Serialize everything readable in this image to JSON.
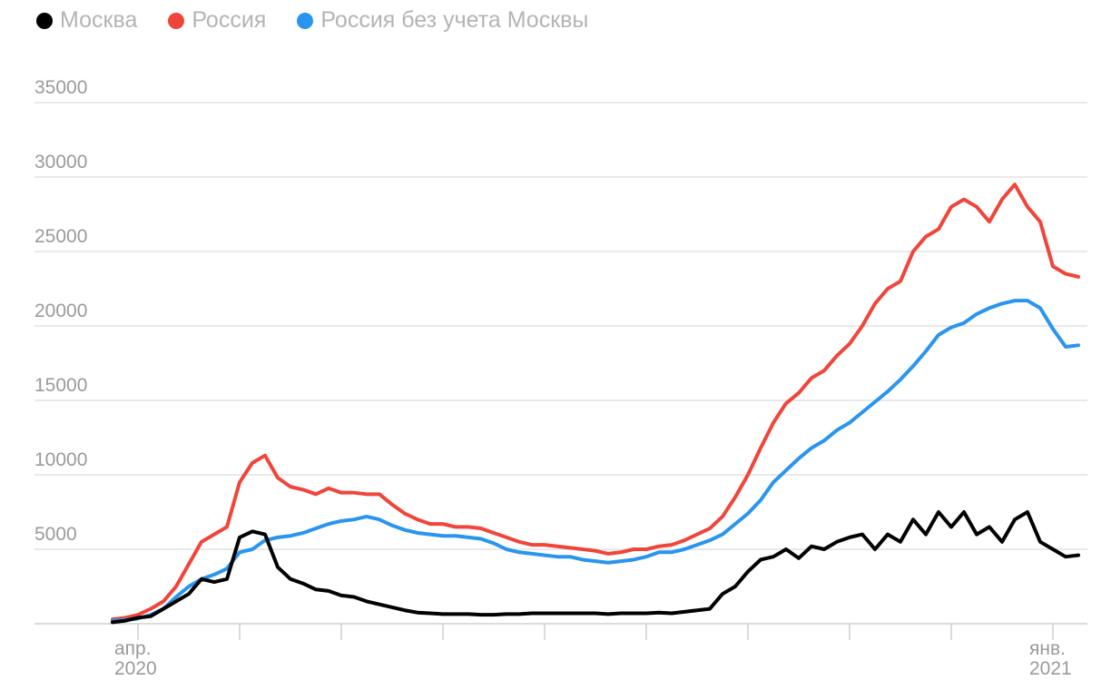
{
  "chart_data": {
    "type": "line",
    "categories": [
      null,
      null,
      "апр.\n2020",
      null,
      null,
      null,
      null,
      null,
      null,
      null,
      null,
      null,
      null,
      null,
      null,
      null,
      null,
      null,
      null,
      null,
      null,
      null,
      null,
      null,
      null,
      null,
      null,
      null,
      null,
      null,
      null,
      null,
      null,
      null,
      null,
      null,
      null,
      null,
      null,
      null,
      null,
      null,
      null,
      null,
      null,
      null,
      null,
      null,
      null,
      null,
      null,
      null,
      null,
      null,
      null,
      null,
      null,
      null,
      null,
      null,
      null,
      null,
      null,
      null,
      null,
      null,
      null,
      null,
      null,
      null,
      null,
      null,
      null,
      null,
      "янв.\n2021",
      null,
      null
    ],
    "xticks": [
      2,
      10,
      18,
      26,
      34,
      42,
      50,
      58,
      66,
      74
    ],
    "series": [
      {
        "name": "Москва",
        "color": "#000000",
        "values": [
          100,
          200,
          400,
          500,
          1000,
          1500,
          2000,
          3000,
          2800,
          3000,
          5800,
          6200,
          6000,
          3800,
          3000,
          2700,
          2300,
          2200,
          1900,
          1800,
          1500,
          1300,
          1100,
          900,
          750,
          700,
          650,
          650,
          650,
          600,
          600,
          650,
          650,
          700,
          700,
          700,
          700,
          700,
          700,
          650,
          700,
          700,
          700,
          750,
          700,
          800,
          900,
          1000,
          2000,
          2500,
          3500,
          4300,
          4500,
          5000,
          4400,
          5200,
          5000,
          5500,
          5800,
          6000,
          5000,
          6000,
          5500,
          7000,
          6000,
          7500,
          6500,
          7500,
          6000,
          6500,
          5500,
          7000,
          7500,
          5500,
          5000,
          4500,
          4600
        ]
      },
      {
        "name": "Россия",
        "color": "#f0453a",
        "values": [
          300,
          400,
          600,
          1000,
          1500,
          2500,
          4000,
          5500,
          6000,
          6500,
          9500,
          10800,
          11300,
          9800,
          9200,
          9000,
          8700,
          9100,
          8800,
          8800,
          8700,
          8700,
          8000,
          7400,
          7000,
          6700,
          6700,
          6500,
          6500,
          6400,
          6100,
          5800,
          5500,
          5300,
          5300,
          5200,
          5100,
          5000,
          4900,
          4700,
          4800,
          5000,
          5000,
          5200,
          5300,
          5600,
          6000,
          6400,
          7200,
          8500,
          10000,
          11800,
          13500,
          14800,
          15500,
          16500,
          17000,
          18000,
          18800,
          20000,
          21500,
          22500,
          23000,
          25000,
          26000,
          26500,
          28000,
          28500,
          28000,
          27000,
          28500,
          29500,
          28000,
          27000,
          24000,
          23500,
          23300
        ]
      },
      {
        "name": "Россия без учета Москвы",
        "color": "#2a95ee",
        "values": [
          200,
          250,
          350,
          600,
          1000,
          1800,
          2500,
          3000,
          3300,
          3700,
          4800,
          5000,
          5600,
          5800,
          5900,
          6100,
          6400,
          6700,
          6900,
          7000,
          7200,
          7000,
          6600,
          6300,
          6100,
          6000,
          5900,
          5900,
          5800,
          5700,
          5400,
          5000,
          4800,
          4700,
          4600,
          4500,
          4500,
          4300,
          4200,
          4100,
          4200,
          4300,
          4500,
          4800,
          4800,
          5000,
          5300,
          5600,
          6000,
          6700,
          7400,
          8300,
          9500,
          10300,
          11100,
          11800,
          12300,
          13000,
          13500,
          14200,
          14900,
          15600,
          16400,
          17300,
          18300,
          19400,
          19900,
          20200,
          20800,
          21200,
          21500,
          21700,
          21700,
          21200,
          19800,
          18600,
          18700
        ]
      }
    ],
    "ylim": [
      0,
      35000
    ],
    "yticks": [
      0,
      5000,
      10000,
      15000,
      20000,
      25000,
      30000,
      35000
    ],
    "grid": true
  }
}
